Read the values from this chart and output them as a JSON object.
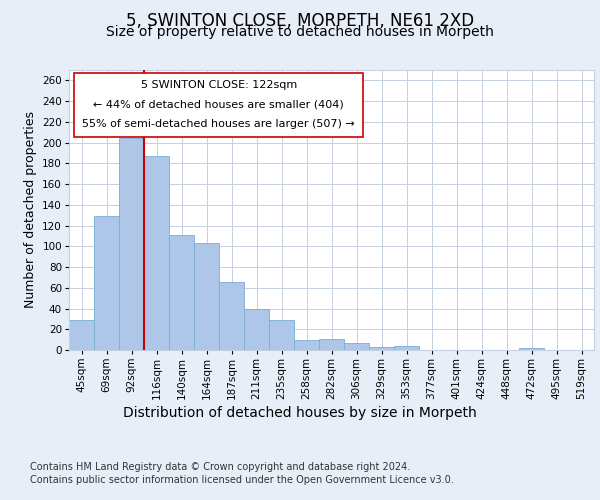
{
  "title_line1": "5, SWINTON CLOSE, MORPETH, NE61 2XD",
  "title_line2": "Size of property relative to detached houses in Morpeth",
  "xlabel": "Distribution of detached houses by size in Morpeth",
  "ylabel": "Number of detached properties",
  "footer_line1": "Contains HM Land Registry data © Crown copyright and database right 2024.",
  "footer_line2": "Contains public sector information licensed under the Open Government Licence v3.0.",
  "categories": [
    "45sqm",
    "69sqm",
    "92sqm",
    "116sqm",
    "140sqm",
    "164sqm",
    "187sqm",
    "211sqm",
    "235sqm",
    "258sqm",
    "282sqm",
    "306sqm",
    "329sqm",
    "353sqm",
    "377sqm",
    "401sqm",
    "424sqm",
    "448sqm",
    "472sqm",
    "495sqm",
    "519sqm"
  ],
  "values": [
    29,
    129,
    204,
    187,
    111,
    103,
    66,
    40,
    29,
    10,
    11,
    7,
    3,
    4,
    0,
    0,
    0,
    0,
    2,
    0,
    0
  ],
  "bar_color": "#aec6e8",
  "bar_edge_color": "#7aadd4",
  "vline_color": "#cc0000",
  "vline_x": 3,
  "annotation_line1": "5 SWINTON CLOSE: 122sqm",
  "annotation_line2": "← 44% of detached houses are smaller (404)",
  "annotation_line3": "55% of semi-detached houses are larger (507) →",
  "ylim": [
    0,
    270
  ],
  "yticks": [
    0,
    20,
    40,
    60,
    80,
    100,
    120,
    140,
    160,
    180,
    200,
    220,
    240,
    260
  ],
  "bg_color": "#e8eef8",
  "plot_bg_color": "#ffffff",
  "grid_color": "#c5d0e0",
  "title_fontsize": 12,
  "subtitle_fontsize": 10,
  "tick_fontsize": 7.5,
  "ylabel_fontsize": 9,
  "xlabel_fontsize": 10,
  "footer_fontsize": 7,
  "annot_fontsize": 8
}
